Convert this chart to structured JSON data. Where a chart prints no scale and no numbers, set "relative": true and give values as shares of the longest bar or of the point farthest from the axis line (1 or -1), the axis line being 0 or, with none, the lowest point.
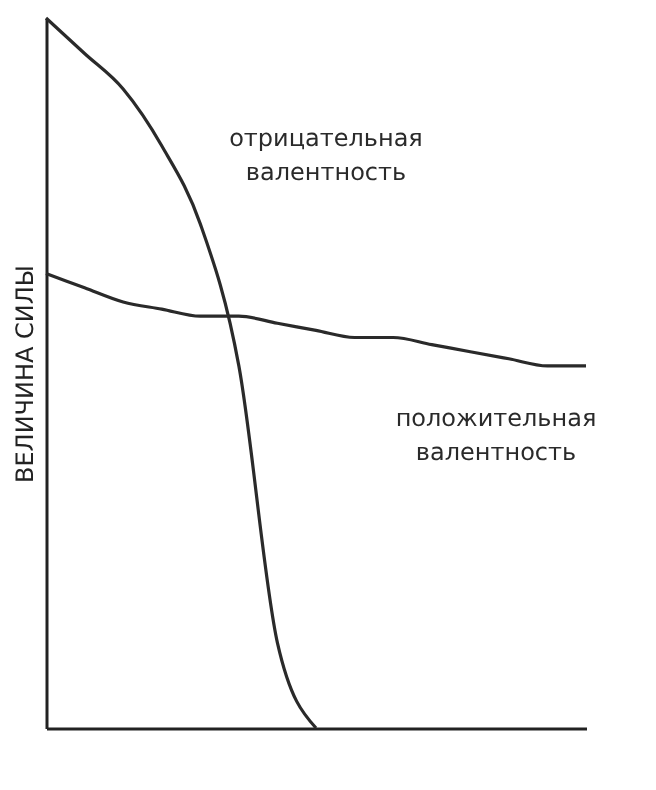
{
  "chart_data": {
    "type": "line",
    "ylabel": "ВЕЛИЧИНА СИЛЫ",
    "relative": true,
    "categories": [
      null,
      null,
      null,
      null,
      null,
      null,
      null,
      null,
      null,
      null,
      null,
      null,
      null,
      null,
      null
    ],
    "series": [
      {
        "name": "отрицательная валентность",
        "color": "#2a2a2a",
        "values": [
          1.0,
          0.95,
          0.9,
          0.82,
          0.71,
          0.51,
          0.12,
          0,
          null,
          null,
          null,
          null,
          null,
          null,
          null
        ]
      },
      {
        "name": "положительная валентность",
        "color": "#2a2a2a",
        "values": [
          0.64,
          0.62,
          0.6,
          0.59,
          0.58,
          0.58,
          0.57,
          0.56,
          0.55,
          0.55,
          0.54,
          0.53,
          0.52,
          0.51,
          0.51
        ]
      }
    ],
    "line_style": "solid",
    "marker": "none"
  }
}
